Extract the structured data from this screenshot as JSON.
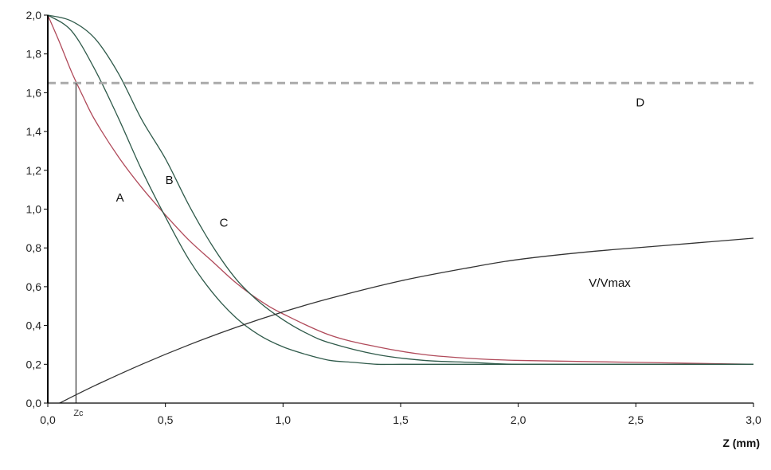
{
  "chart_data": {
    "type": "line",
    "title": "",
    "xlabel": "Z (mm)",
    "ylabel": "",
    "xlim": [
      0,
      3
    ],
    "ylim": [
      0,
      2
    ],
    "x_ticks": [
      "0,0",
      "0,5",
      "1,0",
      "1,5",
      "2,0",
      "2,5",
      "3,0"
    ],
    "y_ticks": [
      "0,0",
      "0,2",
      "0,4",
      "0,6",
      "0,8",
      "1,0",
      "1,2",
      "1,4",
      "1,6",
      "1,8",
      "2,0"
    ],
    "grid": false,
    "legend": "none",
    "series": [
      {
        "name": "A",
        "color": "#b04a5a",
        "x": [
          0.0,
          0.05,
          0.1,
          0.15,
          0.2,
          0.3,
          0.4,
          0.5,
          0.6,
          0.7,
          0.8,
          0.9,
          1.0,
          1.2,
          1.4,
          1.6,
          1.8,
          2.0,
          2.5,
          3.0
        ],
        "y": [
          2.0,
          1.86,
          1.71,
          1.58,
          1.46,
          1.27,
          1.11,
          0.97,
          0.84,
          0.73,
          0.62,
          0.53,
          0.46,
          0.35,
          0.29,
          0.25,
          0.23,
          0.22,
          0.21,
          0.2
        ]
      },
      {
        "name": "B",
        "color": "#2f5a4a",
        "x": [
          0.0,
          0.1,
          0.2,
          0.3,
          0.4,
          0.5,
          0.6,
          0.7,
          0.8,
          0.9,
          1.0,
          1.1,
          1.2,
          1.3,
          1.4,
          1.5,
          1.7,
          2.0,
          2.5,
          3.0
        ],
        "y": [
          2.0,
          1.92,
          1.72,
          1.47,
          1.2,
          0.96,
          0.74,
          0.57,
          0.44,
          0.35,
          0.29,
          0.25,
          0.22,
          0.21,
          0.2,
          0.2,
          0.2,
          0.2,
          0.2,
          0.2
        ]
      },
      {
        "name": "C",
        "color": "#2f5a4a",
        "x": [
          0.0,
          0.1,
          0.2,
          0.3,
          0.4,
          0.5,
          0.6,
          0.7,
          0.8,
          0.9,
          1.0,
          1.1,
          1.2,
          1.4,
          1.6,
          1.8,
          2.0,
          2.5,
          3.0
        ],
        "y": [
          2.0,
          1.97,
          1.88,
          1.7,
          1.46,
          1.26,
          1.02,
          0.81,
          0.64,
          0.52,
          0.43,
          0.36,
          0.31,
          0.25,
          0.22,
          0.21,
          0.2,
          0.2,
          0.2
        ]
      },
      {
        "name": "D",
        "color": "#aaaaaa",
        "dashed": true,
        "x": [
          0.0,
          3.0
        ],
        "y": [
          1.65,
          1.65
        ]
      },
      {
        "name": "V/Vmax",
        "color": "#333333",
        "x": [
          0.05,
          0.2,
          0.4,
          0.6,
          0.8,
          1.0,
          1.2,
          1.5,
          1.8,
          2.0,
          2.3,
          2.6,
          3.0
        ],
        "y": [
          0.0,
          0.09,
          0.2,
          0.3,
          0.39,
          0.47,
          0.54,
          0.63,
          0.7,
          0.74,
          0.78,
          0.81,
          0.85
        ]
      }
    ],
    "annotations": [
      {
        "text": "A",
        "x": 0.29,
        "y": 1.04
      },
      {
        "text": "B",
        "x": 0.5,
        "y": 1.13
      },
      {
        "text": "C",
        "x": 0.73,
        "y": 0.91
      },
      {
        "text": "D",
        "x": 2.5,
        "y": 1.53
      },
      {
        "text": "V/Vmax",
        "x": 2.3,
        "y": 0.6
      }
    ],
    "zc": {
      "label": "Zc",
      "x": 0.12,
      "y": 1.65
    }
  }
}
